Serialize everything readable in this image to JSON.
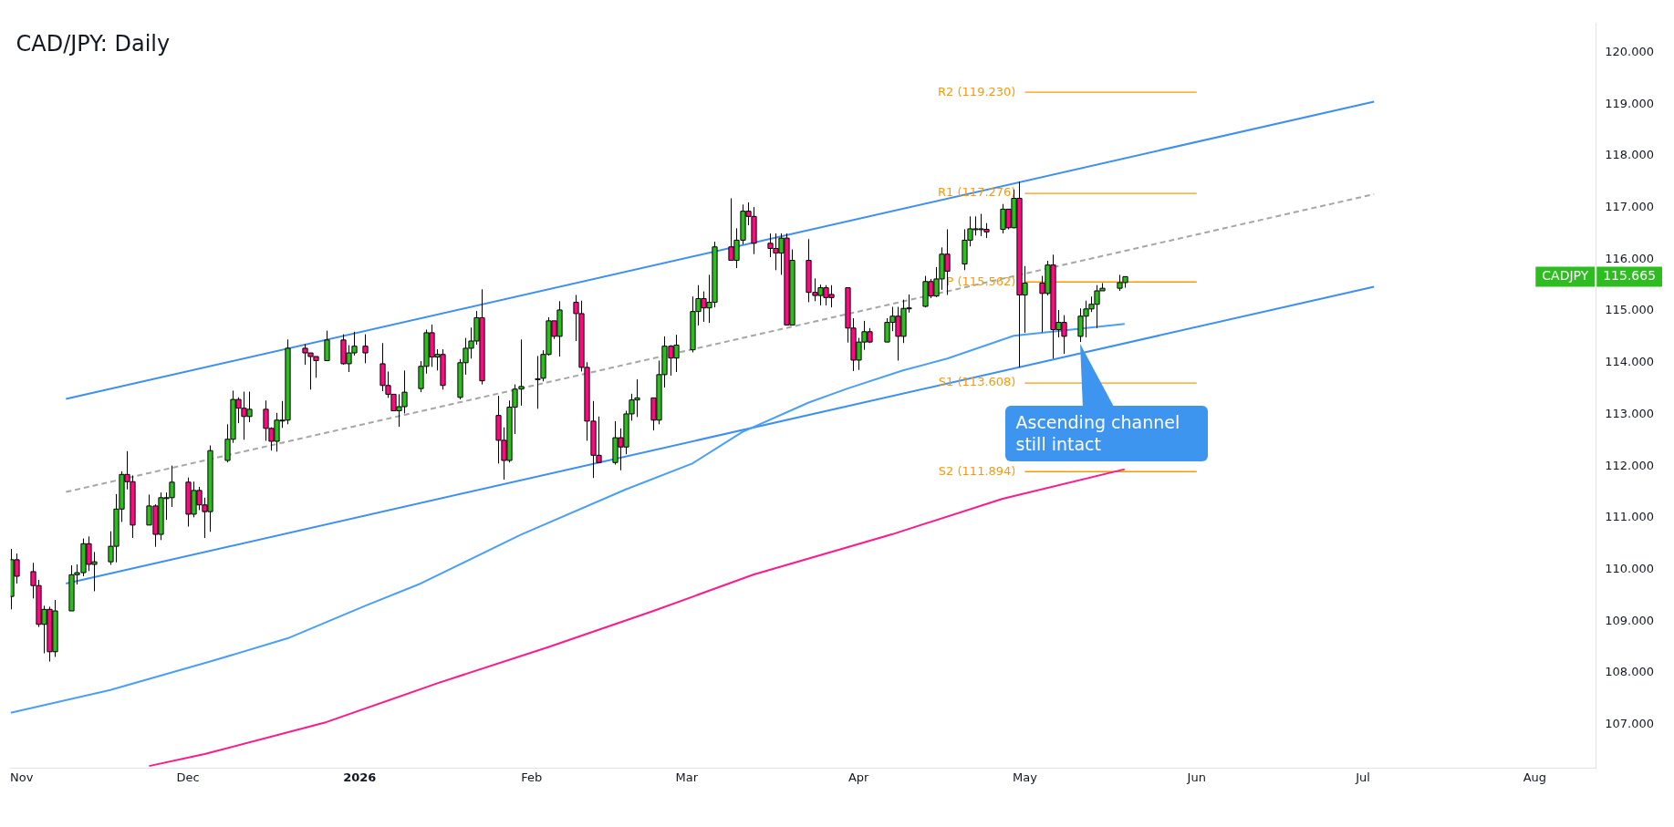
{
  "chart_data": {
    "type": "candlestick",
    "title": "CAD/JPY: Daily",
    "x": [
      "2025-10-30",
      "2025-10-31",
      "2025-11-03",
      "2025-11-04",
      "2025-11-05",
      "2025-11-06",
      "2025-11-07",
      "2025-11-10",
      "2025-11-11",
      "2025-11-12",
      "2025-11-13",
      "2025-11-14",
      "2025-11-17",
      "2025-11-18",
      "2025-11-19",
      "2025-11-20",
      "2025-11-21",
      "2025-11-24",
      "2025-11-25",
      "2025-11-26",
      "2025-11-27",
      "2025-11-28",
      "2025-12-01",
      "2025-12-02",
      "2025-12-03",
      "2025-12-04",
      "2025-12-05",
      "2025-12-08",
      "2025-12-09",
      "2025-12-10",
      "2025-12-11",
      "2025-12-12",
      "2025-12-15",
      "2025-12-16",
      "2025-12-17",
      "2025-12-18",
      "2025-12-19",
      "2025-12-22",
      "2025-12-23",
      "2025-12-24",
      "2025-12-26",
      "2025-12-29",
      "2025-12-30",
      "2025-12-31",
      "2026-01-02",
      "2026-01-05",
      "2026-01-06",
      "2026-01-07",
      "2026-01-08",
      "2026-01-09",
      "2026-01-12",
      "2026-01-13",
      "2026-01-14",
      "2026-01-15",
      "2026-01-16",
      "2026-01-19",
      "2026-01-20",
      "2026-01-21",
      "2026-01-22",
      "2026-01-23",
      "2026-01-26",
      "2026-01-27",
      "2026-01-28",
      "2026-01-29",
      "2026-01-30",
      "2026-02-02",
      "2026-02-03",
      "2026-02-04",
      "2026-02-05",
      "2026-02-06",
      "2026-02-09",
      "2026-02-10",
      "2026-02-11",
      "2026-02-12",
      "2026-02-13",
      "2026-02-16",
      "2026-02-17",
      "2026-02-18",
      "2026-02-19",
      "2026-02-20",
      "2026-02-23",
      "2026-02-24",
      "2026-02-25",
      "2026-02-26",
      "2026-02-27",
      "2026-03-02",
      "2026-03-03",
      "2026-03-04",
      "2026-03-05",
      "2026-03-06",
      "2026-03-09",
      "2026-03-10",
      "2026-03-11",
      "2026-03-12",
      "2026-03-13",
      "2026-03-16",
      "2026-03-17",
      "2026-03-18",
      "2026-03-19",
      "2026-03-20",
      "2026-03-23",
      "2026-03-24",
      "2026-03-25",
      "2026-03-26",
      "2026-03-27",
      "2026-03-30",
      "2026-03-31",
      "2026-04-01",
      "2026-04-02",
      "2026-04-03",
      "2026-04-06",
      "2026-04-07",
      "2026-04-08",
      "2026-04-09",
      "2026-04-10",
      "2026-04-13",
      "2026-04-14",
      "2026-04-15",
      "2026-04-16",
      "2026-04-17",
      "2026-04-20",
      "2026-04-21",
      "2026-04-22",
      "2026-04-23",
      "2026-04-24",
      "2026-04-27",
      "2026-04-28",
      "2026-04-29",
      "2026-04-30",
      "2026-05-01",
      "2026-05-04",
      "2026-05-05",
      "2026-05-06",
      "2026-05-07",
      "2026-05-08",
      "2026-05-11",
      "2026-05-12",
      "2026-05-13",
      "2026-05-14",
      "2026-05-15",
      "2026-05-18",
      "2026-05-19"
    ],
    "ohlc": [
      [
        109.48,
        110.4,
        109.23,
        110.19
      ],
      [
        110.19,
        110.31,
        109.73,
        109.87
      ],
      [
        109.96,
        110.13,
        109.44,
        109.69
      ],
      [
        109.69,
        109.8,
        108.89,
        108.94
      ],
      [
        108.94,
        109.3,
        108.38,
        109.23
      ],
      [
        109.23,
        109.28,
        108.22,
        108.41
      ],
      [
        108.41,
        109.41,
        108.31,
        109.2
      ],
      [
        109.2,
        110.08,
        109.2,
        109.9
      ],
      [
        109.9,
        110.1,
        109.71,
        109.94
      ],
      [
        109.94,
        110.6,
        109.87,
        110.5
      ],
      [
        110.5,
        110.64,
        109.97,
        110.1
      ],
      [
        110.1,
        110.34,
        109.58,
        110.15
      ],
      [
        110.15,
        110.74,
        110.09,
        110.45
      ],
      [
        110.45,
        111.46,
        110.14,
        111.17
      ],
      [
        111.17,
        111.9,
        110.92,
        111.84
      ],
      [
        111.84,
        112.29,
        111.55,
        111.7
      ],
      [
        111.7,
        111.82,
        110.61,
        110.86
      ],
      [
        110.86,
        111.45,
        110.86,
        111.23
      ],
      [
        111.23,
        111.26,
        110.44,
        110.68
      ],
      [
        110.68,
        111.49,
        110.57,
        111.39
      ],
      [
        111.39,
        111.49,
        110.96,
        111.39
      ],
      [
        111.39,
        112.01,
        111.21,
        111.69
      ],
      [
        111.69,
        111.78,
        110.83,
        111.07
      ],
      [
        111.07,
        111.7,
        111.01,
        111.53
      ],
      [
        111.53,
        111.6,
        111.15,
        111.25
      ],
      [
        111.25,
        111.39,
        110.61,
        111.12
      ],
      [
        111.12,
        112.4,
        110.73,
        112.3
      ],
      [
        112.11,
        112.81,
        112.07,
        112.52
      ],
      [
        112.52,
        113.46,
        112.45,
        113.29
      ],
      [
        113.29,
        113.33,
        112.83,
        113.12
      ],
      [
        113.12,
        113.44,
        112.51,
        112.96
      ],
      [
        112.96,
        113.44,
        112.85,
        113.1
      ],
      [
        113.1,
        113.27,
        112.49,
        112.73
      ],
      [
        112.73,
        112.75,
        112.3,
        112.48
      ],
      [
        112.48,
        113.03,
        112.28,
        112.89
      ],
      [
        112.89,
        113.26,
        112.74,
        112.89
      ],
      [
        112.89,
        114.45,
        112.81,
        114.28
      ],
      [
        114.28,
        114.36,
        113.96,
        114.19
      ],
      [
        114.19,
        114.19,
        113.48,
        114.12
      ],
      [
        114.12,
        114.12,
        113.71,
        114.04
      ],
      [
        114.04,
        114.62,
        114.04,
        114.44
      ],
      [
        114.44,
        114.55,
        113.96,
        113.98
      ],
      [
        113.98,
        114.34,
        113.82,
        114.19
      ],
      [
        114.19,
        114.6,
        114.14,
        114.32
      ],
      [
        114.32,
        114.55,
        113.99,
        114.19
      ],
      [
        113.98,
        114.38,
        113.45,
        113.56
      ],
      [
        113.56,
        113.83,
        113.32,
        113.39
      ],
      [
        113.39,
        113.39,
        113.07,
        113.07
      ],
      [
        113.07,
        113.39,
        112.76,
        113.15
      ],
      [
        113.15,
        113.85,
        113.02,
        113.43
      ],
      [
        113.5,
        114.03,
        113.43,
        113.93
      ],
      [
        113.93,
        114.64,
        113.79,
        114.58
      ],
      [
        114.58,
        114.74,
        113.92,
        114.11
      ],
      [
        114.11,
        114.26,
        113.85,
        114.16
      ],
      [
        114.16,
        114.26,
        113.48,
        113.56
      ],
      [
        113.33,
        114.07,
        113.29,
        114.0
      ],
      [
        114.0,
        114.48,
        113.77,
        114.28
      ],
      [
        114.28,
        114.68,
        114.08,
        114.42
      ],
      [
        114.42,
        115.0,
        114.35,
        114.87
      ],
      [
        114.87,
        115.42,
        113.58,
        113.65
      ],
      [
        112.98,
        113.36,
        112.05,
        112.5
      ],
      [
        112.5,
        112.75,
        111.74,
        112.11
      ],
      [
        112.11,
        113.27,
        112.07,
        113.14
      ],
      [
        113.14,
        113.58,
        112.62,
        113.49
      ],
      [
        113.49,
        114.45,
        113.17,
        113.54
      ],
      [
        113.69,
        114.13,
        113.11,
        113.69
      ],
      [
        113.7,
        114.24,
        113.64,
        114.16
      ],
      [
        114.16,
        114.88,
        114.14,
        114.81
      ],
      [
        114.81,
        114.81,
        114.46,
        114.51
      ],
      [
        114.51,
        115.19,
        114.12,
        115.02
      ],
      [
        115.17,
        115.31,
        114.42,
        114.95
      ],
      [
        114.95,
        115.2,
        113.83,
        113.91
      ],
      [
        113.91,
        114.01,
        112.49,
        112.87
      ],
      [
        112.87,
        113.26,
        111.77,
        112.21
      ],
      [
        112.21,
        112.96,
        112.07,
        112.07
      ],
      [
        112.07,
        112.87,
        112.03,
        112.55
      ],
      [
        112.55,
        112.73,
        111.92,
        112.37
      ],
      [
        112.37,
        113.07,
        112.23,
        113.01
      ],
      [
        113.01,
        113.4,
        112.88,
        113.28
      ],
      [
        113.28,
        113.68,
        112.95,
        113.32
      ],
      [
        113.32,
        113.32,
        112.69,
        112.89
      ],
      [
        112.89,
        114.04,
        112.81,
        113.77
      ],
      [
        113.77,
        114.51,
        113.52,
        114.32
      ],
      [
        114.32,
        114.34,
        113.75,
        114.09
      ],
      [
        114.09,
        114.54,
        113.82,
        114.34
      ],
      [
        114.25,
        115.28,
        114.2,
        114.99
      ],
      [
        114.99,
        115.5,
        114.72,
        115.24
      ],
      [
        115.24,
        115.38,
        114.79,
        115.06
      ],
      [
        115.06,
        115.7,
        114.77,
        115.17
      ],
      [
        115.17,
        116.34,
        115.07,
        116.24
      ],
      [
        116.24,
        117.18,
        115.98,
        115.98
      ],
      [
        115.98,
        116.6,
        115.83,
        116.37
      ],
      [
        116.37,
        117.06,
        116.29,
        116.93
      ],
      [
        116.93,
        117.1,
        116.66,
        116.83
      ],
      [
        116.83,
        117.01,
        116.1,
        116.31
      ],
      [
        116.31,
        116.5,
        116.04,
        116.21
      ],
      [
        116.21,
        116.5,
        115.79,
        116.12
      ],
      [
        116.12,
        116.5,
        115.7,
        116.41
      ],
      [
        116.41,
        116.5,
        114.72,
        114.73
      ],
      [
        114.73,
        116.19,
        114.72,
        115.98
      ],
      [
        115.98,
        116.39,
        115.17,
        115.36
      ],
      [
        115.36,
        115.63,
        115.19,
        115.3
      ],
      [
        115.3,
        115.51,
        115.11,
        115.45
      ],
      [
        115.45,
        115.5,
        115.11,
        115.26
      ],
      [
        115.32,
        115.5,
        115.07,
        115.26
      ],
      [
        115.45,
        115.45,
        114.39,
        114.67
      ],
      [
        114.67,
        114.86,
        113.84,
        114.05
      ],
      [
        114.05,
        114.48,
        113.86,
        114.4
      ],
      [
        114.4,
        114.81,
        114.25,
        114.6
      ],
      [
        114.6,
        114.67,
        114.38,
        114.4
      ],
      [
        114.4,
        114.86,
        114.4,
        114.78
      ],
      [
        114.78,
        115.08,
        114.61,
        114.9
      ],
      [
        114.9,
        115.08,
        114.04,
        114.51
      ],
      [
        114.51,
        115.22,
        114.38,
        115.05
      ],
      [
        115.06,
        115.32,
        114.97,
        115.06
      ],
      [
        115.09,
        115.68,
        115.07,
        115.57
      ],
      [
        115.57,
        115.62,
        115.25,
        115.29
      ],
      [
        115.29,
        115.85,
        115.27,
        115.62
      ],
      [
        115.62,
        116.23,
        115.41,
        116.1
      ],
      [
        116.1,
        116.58,
        115.31,
        115.77
      ],
      [
        115.91,
        116.58,
        115.79,
        116.37
      ],
      [
        116.37,
        116.83,
        116.25,
        116.59
      ],
      [
        116.59,
        116.83,
        116.46,
        116.59
      ],
      [
        116.59,
        116.88,
        116.45,
        116.59
      ],
      [
        116.58,
        116.7,
        116.41,
        116.53
      ],
      [
        116.58,
        117.07,
        116.5,
        116.97
      ],
      [
        116.97,
        116.97,
        116.58,
        116.61
      ],
      [
        116.61,
        117.35,
        116.6,
        117.18
      ],
      [
        117.18,
        117.5,
        113.91,
        115.31
      ],
      [
        115.31,
        115.87,
        114.58,
        115.54
      ],
      [
        115.54,
        115.68,
        114.59,
        115.34
      ],
      [
        115.34,
        115.97,
        115.3,
        115.89
      ],
      [
        115.89,
        116.09,
        114.08,
        114.64
      ],
      [
        114.64,
        115.02,
        114.49,
        114.78
      ],
      [
        114.78,
        114.92,
        114.17,
        114.51
      ],
      [
        114.51,
        115.05,
        114.4,
        114.9
      ],
      [
        114.9,
        115.2,
        114.49,
        115.04
      ],
      [
        115.04,
        115.28,
        114.98,
        115.13
      ],
      [
        115.13,
        115.5,
        114.67,
        115.39
      ],
      [
        115.39,
        115.54,
        115.39,
        115.44
      ],
      [
        115.44,
        115.7,
        115.39,
        115.55
      ],
      [
        115.55,
        115.67,
        115.45,
        115.665
      ]
    ],
    "colors": [
      "#2ebd21",
      "#ff0a82",
      "#ff0a82",
      "#ff0a82",
      "#2ebd21",
      "#ff0a82",
      "#2ebd21",
      "#2ebd21",
      "#2ebd21",
      "#2ebd21",
      "#ff0a82",
      "#2ebd21",
      "#2ebd21",
      "#2ebd21",
      "#2ebd21",
      "#ff0a82",
      "#ff0a82",
      "#2ebd21",
      "#ff0a82",
      "#2ebd21",
      "#2ebd21",
      "#2ebd21",
      "#ff0a82",
      "#2ebd21",
      "#ff0a82",
      "#ff0a82",
      "#2ebd21",
      "#2ebd21",
      "#2ebd21",
      "#ff0a82",
      "#ff0a82",
      "#2ebd21",
      "#ff0a82",
      "#ff0a82",
      "#2ebd21",
      "#2ebd21",
      "#2ebd21",
      "#ff0a82",
      "#ff0a82",
      "#ff0a82",
      "#2ebd21",
      "#ff0a82",
      "#2ebd21",
      "#2ebd21",
      "#ff0a82",
      "#ff0a82",
      "#ff0a82",
      "#ff0a82",
      "#2ebd21",
      "#2ebd21",
      "#2ebd21",
      "#2ebd21",
      "#ff0a82",
      "#2ebd21",
      "#ff0a82",
      "#2ebd21",
      "#2ebd21",
      "#2ebd21",
      "#2ebd21",
      "#ff0a82",
      "#ff0a82",
      "#ff0a82",
      "#2ebd21",
      "#2ebd21",
      "#2ebd21",
      "#2ebd21",
      "#2ebd21",
      "#2ebd21",
      "#ff0a82",
      "#2ebd21",
      "#ff0a82",
      "#ff0a82",
      "#ff0a82",
      "#ff0a82",
      "#ff0a82",
      "#2ebd21",
      "#ff0a82",
      "#2ebd21",
      "#2ebd21",
      "#2ebd21",
      "#ff0a82",
      "#2ebd21",
      "#2ebd21",
      "#ff0a82",
      "#2ebd21",
      "#2ebd21",
      "#2ebd21",
      "#ff0a82",
      "#2ebd21",
      "#2ebd21",
      "#ff0a82",
      "#2ebd21",
      "#2ebd21",
      "#ff0a82",
      "#ff0a82",
      "#ff0a82",
      "#ff0a82",
      "#2ebd21",
      "#ff0a82",
      "#2ebd21",
      "#ff0a82",
      "#ff0a82",
      "#2ebd21",
      "#ff0a82",
      "#ff0a82",
      "#ff0a82",
      "#ff0a82",
      "#2ebd21",
      "#2ebd21",
      "#ff0a82",
      "#2ebd21",
      "#2ebd21",
      "#ff0a82",
      "#2ebd21",
      "#2ebd21",
      "#2ebd21",
      "#ff0a82",
      "#2ebd21",
      "#2ebd21",
      "#ff0a82",
      "#2ebd21",
      "#2ebd21",
      "#2ebd21",
      "#2ebd21",
      "#ff0a82",
      "#2ebd21",
      "#ff0a82",
      "#2ebd21",
      "#ff0a82",
      "#2ebd21",
      "#ff0a82",
      "#2ebd21",
      "#ff0a82",
      "#2ebd21",
      "#ff0a82",
      "#2ebd21",
      "#2ebd21",
      "#2ebd21",
      "#2ebd21",
      "#2ebd21",
      "#2ebd21",
      "#2ebd21"
    ],
    "series": [
      {
        "type": "line",
        "color": "#4a9ff5",
        "x": [
          "2025-10-30",
          "2025-11-17",
          "2025-12-05",
          "2025-12-19",
          "2026-01-02",
          "2026-01-12",
          "2026-01-30",
          "2026-02-18",
          "2026-03-02",
          "2026-03-11",
          "2026-03-23",
          "2026-03-30",
          "2026-04-09",
          "2026-04-17",
          "2026-04-29",
          "2026-05-19"
        ],
        "values": [
          107.23,
          107.67,
          108.22,
          108.67,
          109.3,
          109.73,
          110.67,
          111.55,
          112.05,
          112.66,
          113.23,
          113.5,
          113.85,
          114.08,
          114.52,
          114.75
        ]
      },
      {
        "type": "line",
        "color": "#ff1a8c",
        "x": [
          "2025-11-24",
          "2025-12-04",
          "2025-12-26",
          "2026-01-15",
          "2026-02-04",
          "2026-02-23",
          "2026-03-13",
          "2026-04-07",
          "2026-04-27",
          "2026-05-19"
        ],
        "values": [
          106.2,
          106.43,
          107.05,
          107.8,
          108.5,
          109.2,
          109.9,
          110.68,
          111.37,
          111.94
        ]
      },
      {
        "type": "line",
        "color": "#3d8ff0",
        "x": [
          "2025-11-09",
          "2026-07-03"
        ],
        "values": [
          113.3,
          119.05
        ]
      },
      {
        "type": "line",
        "color": "#3d8ff0",
        "x": [
          "2025-11-09",
          "2026-07-03"
        ],
        "values": [
          109.73,
          115.47
        ]
      },
      {
        "type": "line",
        "color": "#a6a6a6",
        "line_style": "dashed",
        "x": [
          "2025-11-09",
          "2026-07-03"
        ],
        "values": [
          111.5,
          117.26
        ]
      },
      {
        "type": "line",
        "name": "R2 (119.230)",
        "color": "#ff9800",
        "x": [
          "2026-05-01",
          "2026-06-01"
        ],
        "values": [
          119.23,
          119.23
        ]
      },
      {
        "type": "line",
        "name": "R1 (117.276)",
        "color": "#ff9800",
        "x": [
          "2026-05-01",
          "2026-06-01"
        ],
        "values": [
          117.276,
          117.276
        ]
      },
      {
        "type": "line",
        "name": "P (115.562)",
        "color": "#ff9800",
        "x": [
          "2026-05-01",
          "2026-06-01"
        ],
        "values": [
          115.562,
          115.562
        ]
      },
      {
        "type": "line",
        "name": "S1 (113.608)",
        "color": "#ff9800",
        "x": [
          "2026-05-01",
          "2026-06-01"
        ],
        "values": [
          113.608,
          113.608
        ]
      },
      {
        "type": "line",
        "name": "S2 (111.894)",
        "color": "#ff9800",
        "x": [
          "2026-05-01",
          "2026-06-01"
        ],
        "values": [
          111.894,
          111.894
        ]
      }
    ],
    "xlim": [
      "2025-10-30",
      "2026-08-12"
    ],
    "xticks": [
      {
        "value": "2025-11-01",
        "label": "Nov"
      },
      {
        "value": "2025-12-01",
        "label": "Dec"
      },
      {
        "value": "2026-01-01",
        "label": "2026"
      },
      {
        "value": "2026-02-01",
        "label": "Feb"
      },
      {
        "value": "2026-03-01",
        "label": "Mar"
      },
      {
        "value": "2026-04-01",
        "label": "Apr"
      },
      {
        "value": "2026-05-01",
        "label": "May"
      },
      {
        "value": "2026-06-01",
        "label": "Jun"
      },
      {
        "value": "2026-07-01",
        "label": "Jul"
      },
      {
        "value": "2026-08-01",
        "label": "Aug"
      }
    ],
    "ylim": [
      106.16,
      120.56
    ],
    "yticks": [
      {
        "value": 107,
        "label": "107.000"
      },
      {
        "value": 108,
        "label": "108.000"
      },
      {
        "value": 109,
        "label": "109.000"
      },
      {
        "value": 110,
        "label": "110.000"
      },
      {
        "value": 111,
        "label": "111.000"
      },
      {
        "value": 112,
        "label": "112.000"
      },
      {
        "value": 113,
        "label": "113.000"
      },
      {
        "value": 114,
        "label": "114.000"
      },
      {
        "value": 115,
        "label": "115.000"
      },
      {
        "value": 116,
        "label": "116.000"
      },
      {
        "value": 117,
        "label": "117.000"
      },
      {
        "value": 118,
        "label": "118.000"
      },
      {
        "value": 119,
        "label": "119.000"
      },
      {
        "value": 120,
        "label": "120.000"
      }
    ],
    "annotations": [
      "Ascending channel still intact",
      "CADJPY",
      "115.665"
    ]
  }
}
